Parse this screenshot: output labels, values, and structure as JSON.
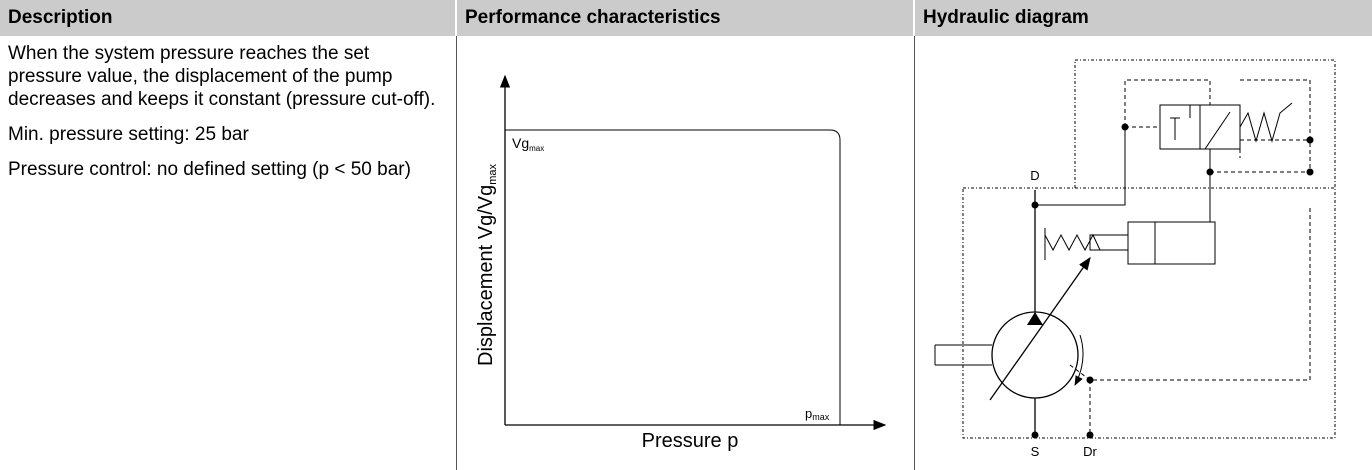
{
  "table": {
    "headers": [
      "Description",
      "Performance characteristics",
      "Hydraulic diagram"
    ],
    "description": [
      "When the system pressure reaches the set pressure value, the displacement of the pump decreases and keeps it constant (pressure cut-off).",
      "Min. pressure setting: 25 bar",
      "Pressure control: no defined setting (p < 50 bar)"
    ],
    "chart": {
      "y_label": {
        "base": "Displacement Vg/Vg",
        "sub": "max"
      },
      "x_label": "Pressure p",
      "curve_start": {
        "base": "Vg",
        "sub": "max"
      },
      "curve_end": {
        "base": "p",
        "sub": "max"
      }
    },
    "diagram": {
      "ports": [
        "D",
        "S",
        "Dr"
      ]
    }
  }
}
